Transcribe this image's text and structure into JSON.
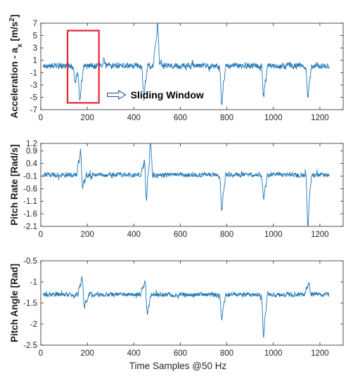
{
  "chart_data": [
    {
      "type": "line",
      "ylabel": "Acceleration - a",
      "ylabel_sub": "x",
      "ylabel_unit_pre": " [m/s",
      "ylabel_unit_sup": "2",
      "ylabel_unit_post": "]",
      "xlim": [
        0,
        1300
      ],
      "ylim": [
        -7,
        7
      ],
      "xticks": [
        0,
        200,
        400,
        600,
        800,
        1000,
        1200
      ],
      "yticks": [
        7,
        5,
        3,
        1,
        -1,
        -3,
        -5,
        -7
      ],
      "series": [
        {
          "color": "#1f77b4",
          "baseline": 0.1,
          "noise": 0.45,
          "events": [
            [
              150,
              1.5,
              -2.5
            ],
            [
              170,
              1.4,
              -5.2
            ],
            [
              270,
              1.2,
              1.0
            ],
            [
              445,
              1.4,
              -4.8
            ],
            [
              500,
              1.6,
              6.2
            ],
            [
              780,
              1.4,
              -5.6
            ],
            [
              960,
              1.4,
              -4.5
            ],
            [
              1150,
              1.4,
              -4.3
            ]
          ]
        }
      ],
      "annotations": {
        "box_x": [
          115,
          250
        ],
        "box_y": [
          -5.9,
          5.8
        ],
        "arrow_text": "Sliding Window"
      }
    },
    {
      "type": "line",
      "ylabel": "Pitch Rate [Rad/s]",
      "xlim": [
        0,
        1300
      ],
      "ylim": [
        -2.1,
        1.2
      ],
      "xticks": [
        0,
        200,
        400,
        600,
        800,
        1000,
        1200
      ],
      "yticks": [
        1.2,
        0.9,
        0.4,
        -0.1,
        -0.6,
        -1.1,
        -1.6,
        -2.1
      ],
      "ytick_labels": [
        "1.2",
        "0.9",
        "0.4",
        "-0.1",
        "-0.6",
        "-1.1",
        "-1.6",
        "-2.1"
      ],
      "series": [
        {
          "color": "#1f77b4",
          "baseline": -0.05,
          "noise": 0.09,
          "events": [
            [
              170,
              1.5,
              0.95
            ],
            [
              180,
              1.5,
              -0.7
            ],
            [
              445,
              1.5,
              0.6
            ],
            [
              455,
              1.3,
              -1.1
            ],
            [
              470,
              1.3,
              1.15
            ],
            [
              780,
              1.5,
              -1.3
            ],
            [
              960,
              1.5,
              -0.95
            ],
            [
              1150,
              1.2,
              -2.0
            ]
          ]
        }
      ]
    },
    {
      "type": "line",
      "ylabel": "Pitch Angle [Rad]",
      "xlabel": "Time Samples @50 Hz",
      "xlim": [
        0,
        1300
      ],
      "ylim": [
        -2.5,
        -0.5
      ],
      "xticks": [
        0,
        200,
        400,
        600,
        800,
        1000,
        1200
      ],
      "yticks": [
        -0.5,
        -1,
        -1.5,
        -2,
        -2.5
      ],
      "series": [
        {
          "color": "#1f77b4",
          "baseline": -1.3,
          "noise": 0.05,
          "events": [
            [
              175,
              1.6,
              -0.95
            ],
            [
              190,
              1.4,
              -1.6
            ],
            [
              445,
              1.6,
              -1.0
            ],
            [
              460,
              1.4,
              -1.75
            ],
            [
              780,
              1.4,
              -1.85
            ],
            [
              960,
              1.4,
              -2.2
            ],
            [
              1150,
              1.6,
              -1.05
            ]
          ]
        }
      ]
    }
  ]
}
